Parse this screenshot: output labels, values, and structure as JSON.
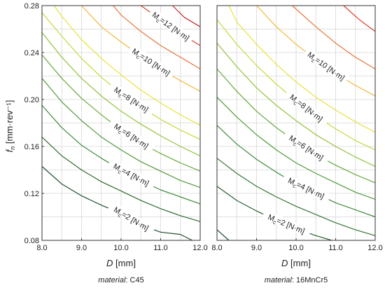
{
  "figure": {
    "ylabel": "f_n [mm·rev⁻¹]",
    "ylabel_main": "f",
    "ylabel_sub": "n",
    "ylabel_units": " [mm·rev⁻¹]"
  },
  "chart_data": [
    {
      "type": "contour",
      "caption_italic": "material",
      "caption_value": ": C45",
      "xlabel_main": "D",
      "xlabel_units": " [mm]",
      "xlim": [
        8.0,
        12.0
      ],
      "ylim": [
        0.08,
        0.28
      ],
      "xticks": [
        "8.0",
        "9.0",
        "10.0",
        "11.0",
        "12.0"
      ],
      "yticks": [
        "0.08",
        "0.12",
        "0.16",
        "0.20",
        "0.24",
        "0.28"
      ],
      "grid": true,
      "contours": [
        {
          "level": 2,
          "label": "M_c=2 [N·m]",
          "color": "#1f4d2b",
          "labelled": true,
          "points": [
            [
              8.0,
              0.143
            ],
            [
              8.5,
              0.128
            ],
            [
              9.0,
              0.118
            ],
            [
              9.5,
              0.11
            ],
            [
              10.0,
              0.103
            ],
            [
              10.5,
              0.093
            ],
            [
              11.0,
              0.087
            ],
            [
              11.5,
              0.085
            ],
            [
              11.8,
              0.08
            ]
          ]
        },
        {
          "level": 3,
          "label": "",
          "color": "#2f6b2f",
          "labelled": false,
          "points": [
            [
              8.0,
              0.168
            ],
            [
              8.5,
              0.152
            ],
            [
              9.0,
              0.14
            ],
            [
              9.5,
              0.13
            ],
            [
              10.0,
              0.122
            ],
            [
              10.5,
              0.114
            ],
            [
              11.0,
              0.107
            ],
            [
              11.5,
              0.101
            ],
            [
              12.0,
              0.096
            ]
          ]
        },
        {
          "level": 4,
          "label": "M_c=4 [N·m]",
          "color": "#3d8a3a",
          "labelled": true,
          "points": [
            [
              8.0,
              0.195
            ],
            [
              8.5,
              0.176
            ],
            [
              9.0,
              0.161
            ],
            [
              9.5,
              0.15
            ],
            [
              10.0,
              0.14
            ],
            [
              10.5,
              0.131
            ],
            [
              11.0,
              0.123
            ],
            [
              11.5,
              0.117
            ],
            [
              12.0,
              0.111
            ]
          ]
        },
        {
          "level": 5,
          "label": "",
          "color": "#4e9a3a",
          "labelled": false,
          "points": [
            [
              8.0,
              0.218
            ],
            [
              8.5,
              0.198
            ],
            [
              9.0,
              0.182
            ],
            [
              9.5,
              0.168
            ],
            [
              10.0,
              0.157
            ],
            [
              10.5,
              0.147
            ],
            [
              11.0,
              0.139
            ],
            [
              11.5,
              0.131
            ],
            [
              12.0,
              0.125
            ]
          ]
        },
        {
          "level": 6,
          "label": "M_c=6 [N·m]",
          "color": "#66a83a",
          "labelled": true,
          "points": [
            [
              8.0,
              0.238
            ],
            [
              8.5,
              0.218
            ],
            [
              9.0,
              0.201
            ],
            [
              9.5,
              0.187
            ],
            [
              10.0,
              0.174
            ],
            [
              10.5,
              0.163
            ],
            [
              11.0,
              0.154
            ],
            [
              11.5,
              0.146
            ],
            [
              12.0,
              0.139
            ]
          ]
        },
        {
          "level": 7,
          "label": "",
          "color": "#93c13a",
          "labelled": false,
          "points": [
            [
              8.0,
              0.257
            ],
            [
              8.5,
              0.236
            ],
            [
              9.0,
              0.218
            ],
            [
              9.5,
              0.203
            ],
            [
              10.0,
              0.19
            ],
            [
              10.5,
              0.179
            ],
            [
              11.0,
              0.169
            ],
            [
              11.5,
              0.16
            ],
            [
              12.0,
              0.152
            ]
          ]
        },
        {
          "level": 8,
          "label": "M_c=8 [N·m]",
          "color": "#c9d63a",
          "labelled": true,
          "points": [
            [
              8.0,
              0.274
            ],
            [
              8.5,
              0.254
            ],
            [
              9.0,
              0.235
            ],
            [
              9.5,
              0.219
            ],
            [
              10.0,
              0.205
            ],
            [
              10.5,
              0.194
            ],
            [
              11.0,
              0.183
            ],
            [
              11.5,
              0.174
            ],
            [
              12.0,
              0.166
            ]
          ]
        },
        {
          "level": 9,
          "label": "",
          "color": "#e8e23a",
          "labelled": false,
          "points": [
            [
              8.3,
              0.28
            ],
            [
              8.5,
              0.271
            ],
            [
              9.0,
              0.251
            ],
            [
              9.5,
              0.235
            ],
            [
              10.0,
              0.221
            ],
            [
              10.5,
              0.208
            ],
            [
              11.0,
              0.197
            ],
            [
              11.5,
              0.187
            ],
            [
              12.0,
              0.178
            ]
          ]
        },
        {
          "level": 10,
          "label": "M_c=10 [N·m]",
          "color": "#f0b83a",
          "labelled": true,
          "points": [
            [
              9.0,
              0.28
            ],
            [
              9.5,
              0.262
            ],
            [
              10.0,
              0.249
            ],
            [
              10.5,
              0.237
            ],
            [
              11.0,
              0.226
            ],
            [
              11.5,
              0.216
            ],
            [
              12.0,
              0.207
            ]
          ]
        },
        {
          "level": 11,
          "label": "",
          "color": "#e8743a",
          "labelled": false,
          "points": [
            [
              9.8,
              0.28
            ],
            [
              10.0,
              0.272
            ],
            [
              10.5,
              0.258
            ],
            [
              11.0,
              0.246
            ],
            [
              11.5,
              0.236
            ],
            [
              12.0,
              0.226
            ]
          ]
        },
        {
          "level": 12,
          "label": "M_c=12 [N·m]",
          "color": "#d9402e",
          "labelled": true,
          "points": [
            [
              10.5,
              0.28
            ],
            [
              11.0,
              0.268
            ],
            [
              11.5,
              0.256
            ],
            [
              12.0,
              0.246
            ]
          ]
        },
        {
          "level": 13,
          "label": "",
          "color": "#c62828",
          "labelled": false,
          "points": [
            [
              11.3,
              0.28
            ],
            [
              11.6,
              0.27
            ],
            [
              12.0,
              0.262
            ]
          ]
        }
      ]
    },
    {
      "type": "contour",
      "caption_italic": "material",
      "caption_value": ": 16MnCr5",
      "xlabel_main": "D",
      "xlabel_units": " [mm]",
      "xlim": [
        8.0,
        12.0
      ],
      "ylim": [
        0.08,
        0.28
      ],
      "xticks": [
        "8.0",
        "9.0",
        "10.0",
        "11.0",
        "12.0"
      ],
      "yticks": [
        "0.08",
        "0.12",
        "0.16",
        "0.20",
        "0.24",
        "0.28"
      ],
      "grid": true,
      "contours": [
        {
          "level": 1,
          "label": "",
          "color": "#1f4d2b",
          "labelled": false,
          "points": [
            [
              8.0,
              0.089
            ],
            [
              8.3,
              0.08
            ]
          ]
        },
        {
          "level": 2,
          "label": "M_c=2 [N·m]",
          "color": "#2a5d30",
          "labelled": true,
          "points": [
            [
              8.0,
              0.126
            ],
            [
              8.5,
              0.114
            ],
            [
              9.0,
              0.105
            ],
            [
              9.5,
              0.097
            ],
            [
              10.0,
              0.09
            ],
            [
              10.5,
              0.084
            ],
            [
              10.9,
              0.08
            ]
          ]
        },
        {
          "level": 3,
          "label": "",
          "color": "#357436",
          "labelled": false,
          "points": [
            [
              8.0,
              0.15
            ],
            [
              8.5,
              0.137
            ],
            [
              9.0,
              0.126
            ],
            [
              9.5,
              0.117
            ],
            [
              10.0,
              0.109
            ],
            [
              10.5,
              0.102
            ],
            [
              11.0,
              0.095
            ],
            [
              11.5,
              0.089
            ],
            [
              12.0,
              0.084
            ]
          ]
        },
        {
          "level": 4,
          "label": "M_c=4 [N·m]",
          "color": "#3d8a3a",
          "labelled": true,
          "points": [
            [
              8.0,
              0.178
            ],
            [
              8.5,
              0.162
            ],
            [
              9.0,
              0.149
            ],
            [
              9.5,
              0.138
            ],
            [
              10.0,
              0.128
            ],
            [
              10.5,
              0.12
            ],
            [
              11.0,
              0.112
            ],
            [
              11.5,
              0.106
            ],
            [
              12.0,
              0.1
            ]
          ]
        },
        {
          "level": 5,
          "label": "",
          "color": "#4e9a3a",
          "labelled": false,
          "points": [
            [
              8.0,
              0.202
            ],
            [
              8.5,
              0.185
            ],
            [
              9.0,
              0.17
            ],
            [
              9.5,
              0.157
            ],
            [
              10.0,
              0.146
            ],
            [
              10.5,
              0.137
            ],
            [
              11.0,
              0.129
            ],
            [
              11.5,
              0.121
            ],
            [
              12.0,
              0.115
            ]
          ]
        },
        {
          "level": 6,
          "label": "M_c=6 [N·m]",
          "color": "#66a83a",
          "labelled": true,
          "points": [
            [
              8.0,
              0.226
            ],
            [
              8.5,
              0.207
            ],
            [
              9.0,
              0.19
            ],
            [
              9.5,
              0.176
            ],
            [
              10.0,
              0.164
            ],
            [
              10.5,
              0.153
            ],
            [
              11.0,
              0.144
            ],
            [
              11.5,
              0.136
            ],
            [
              12.0,
              0.129
            ]
          ]
        },
        {
          "level": 7,
          "label": "",
          "color": "#93c13a",
          "labelled": false,
          "points": [
            [
              8.0,
              0.248
            ],
            [
              8.5,
              0.228
            ],
            [
              9.0,
              0.21
            ],
            [
              9.5,
              0.195
            ],
            [
              10.0,
              0.182
            ],
            [
              10.5,
              0.17
            ],
            [
              11.0,
              0.16
            ],
            [
              11.5,
              0.151
            ],
            [
              12.0,
              0.143
            ]
          ]
        },
        {
          "level": 8,
          "label": "M_c=8 [N·m]",
          "color": "#c9d63a",
          "labelled": true,
          "points": [
            [
              8.0,
              0.268
            ],
            [
              8.5,
              0.247
            ],
            [
              9.0,
              0.229
            ],
            [
              9.5,
              0.213
            ],
            [
              10.0,
              0.199
            ],
            [
              10.5,
              0.186
            ],
            [
              11.0,
              0.175
            ],
            [
              11.5,
              0.165
            ],
            [
              12.0,
              0.157
            ]
          ]
        },
        {
          "level": 9,
          "label": "",
          "color": "#e8e23a",
          "labelled": false,
          "points": [
            [
              8.3,
              0.28
            ],
            [
              8.5,
              0.266
            ],
            [
              9.0,
              0.247
            ],
            [
              9.5,
              0.23
            ],
            [
              10.0,
              0.215
            ],
            [
              10.5,
              0.202
            ],
            [
              11.0,
              0.191
            ],
            [
              11.5,
              0.181
            ],
            [
              12.0,
              0.172
            ]
          ]
        },
        {
          "level": 10,
          "label": "M_c=10 [N·m]",
          "color": "#f0b83a",
          "labelled": true,
          "points": [
            [
              9.0,
              0.28
            ],
            [
              9.5,
              0.262
            ],
            [
              10.0,
              0.247
            ],
            [
              10.5,
              0.234
            ],
            [
              11.0,
              0.222
            ],
            [
              11.5,
              0.212
            ],
            [
              12.0,
              0.203
            ]
          ]
        },
        {
          "level": 11,
          "label": "",
          "color": "#e8743a",
          "labelled": false,
          "points": [
            [
              9.9,
              0.28
            ],
            [
              10.5,
              0.262
            ],
            [
              11.0,
              0.248
            ],
            [
              11.5,
              0.236
            ],
            [
              12.0,
              0.226
            ]
          ]
        },
        {
          "level": 12,
          "label": "",
          "color": "#d9402e",
          "labelled": false,
          "points": [
            [
              11.2,
              0.28
            ],
            [
              11.6,
              0.268
            ],
            [
              12.0,
              0.258
            ]
          ]
        }
      ]
    }
  ]
}
